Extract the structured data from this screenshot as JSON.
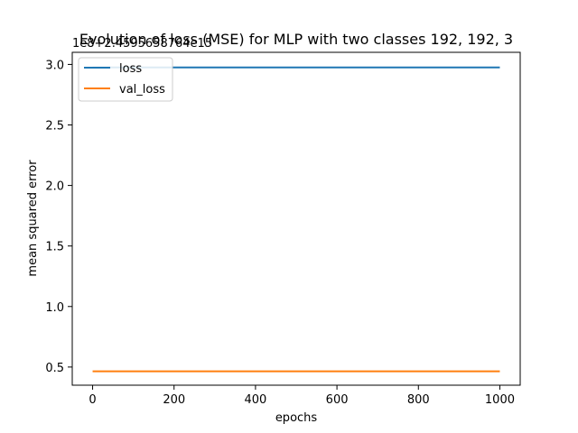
{
  "chart_data": {
    "type": "line",
    "title": "Evolution of loss (MSE) for MLP with two classes 192, 192, 3",
    "offset_text": "1e8+2.4595658764e15",
    "xlabel": "epochs",
    "ylabel": "mean squared error",
    "xlim": [
      -50,
      1050
    ],
    "ylim": [
      0.35,
      3.1
    ],
    "xticks": [
      0,
      200,
      400,
      600,
      800,
      1000
    ],
    "yticks": [
      0.5,
      1.0,
      1.5,
      2.0,
      2.5,
      3.0
    ],
    "ytick_labels": [
      "0.5",
      "1.0",
      "1.5",
      "2.0",
      "2.5",
      "3.0"
    ],
    "grid": false,
    "legend_position": "top-left",
    "series": [
      {
        "name": "loss",
        "color": "#1f77b4",
        "x": [
          0,
          1000
        ],
        "y": [
          2.975,
          2.975
        ]
      },
      {
        "name": "val_loss",
        "color": "#ff7f0e",
        "x": [
          0,
          1000
        ],
        "y": [
          0.465,
          0.465
        ]
      }
    ]
  }
}
